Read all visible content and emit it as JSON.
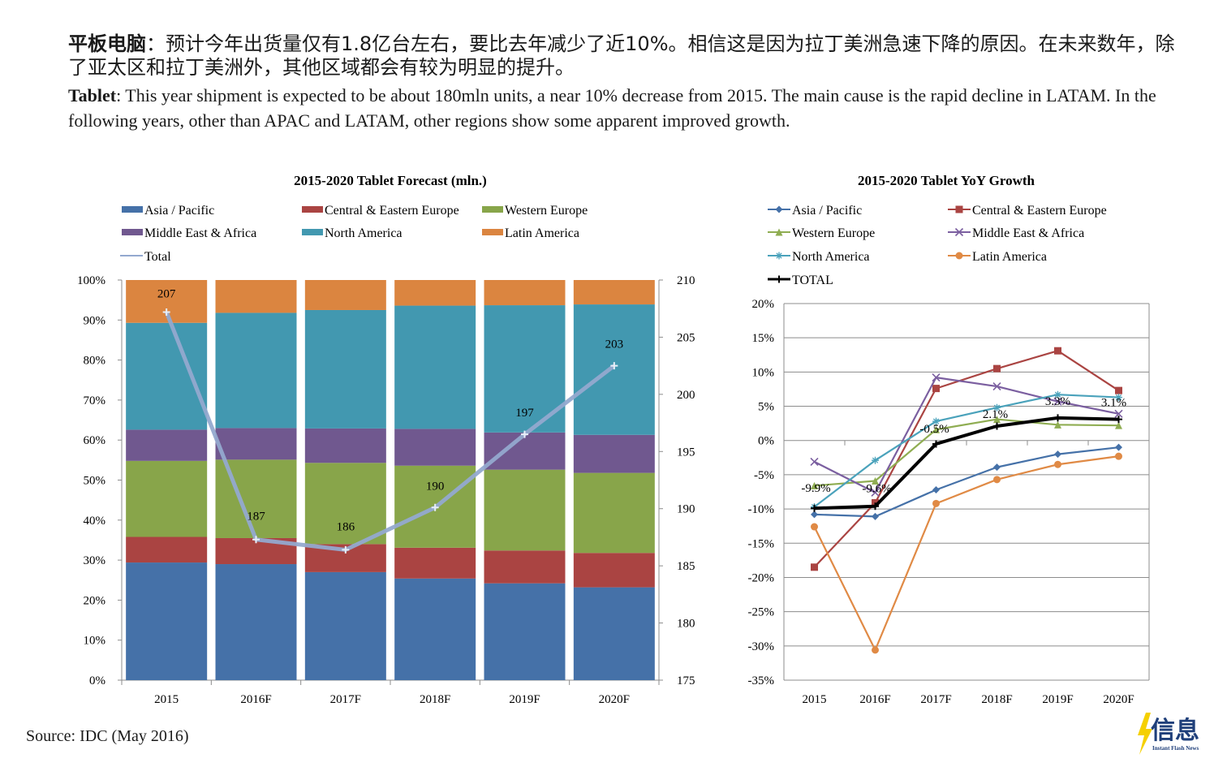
{
  "header": {
    "zh_bold": "平板电脑",
    "zh_text": "：预计今年出货量仅有1.8亿台左右，要比去年减少了近10%。相信这是因为拉丁美洲急速下降的原因。在未来数年，除了亚太区和拉丁美洲外，其他区域都会有较为明显的提升。",
    "en_bold": "Tablet",
    "en_text": ": This year shipment is expected to be about 180mln units, a near 10% decrease from 2015. The main cause is the rapid decline in LATAM. In the following years, other than APAC and LATAM, other regions show some apparent improved growth."
  },
  "source": "Source: IDC (May 2016)",
  "logo": {
    "text": "信息",
    "subtext": "Instant Flash News",
    "color": "#f5d000"
  },
  "chart_data": [
    {
      "type": "bar",
      "stacked": "percent",
      "title": "2015-2020 Tablet Forecast (mln.)",
      "categories": [
        "2015",
        "2016F",
        "2017F",
        "2018F",
        "2019F",
        "2020F"
      ],
      "y_axis": {
        "ticks": [
          "0%",
          "10%",
          "20%",
          "30%",
          "40%",
          "50%",
          "60%",
          "70%",
          "80%",
          "90%",
          "100%"
        ],
        "ylim": [
          0,
          100
        ]
      },
      "y2_axis": {
        "ticks": [
          "175",
          "180",
          "185",
          "190",
          "195",
          "200",
          "205",
          "210"
        ],
        "ylim": [
          175,
          210
        ]
      },
      "legend_position": "top",
      "series": [
        {
          "name": "Asia / Pacific",
          "color": "#4571a8",
          "values": [
            29.4,
            29.0,
            27.0,
            25.4,
            24.2,
            23.2
          ]
        },
        {
          "name": "Central & Eastern Europe",
          "color": "#aa4442",
          "values": [
            6.4,
            6.5,
            7.0,
            7.7,
            8.2,
            8.6
          ]
        },
        {
          "name": "Western Europe",
          "color": "#88a54a",
          "values": [
            19.0,
            19.6,
            20.3,
            20.5,
            20.2,
            20.0
          ]
        },
        {
          "name": "Middle East & Africa",
          "color": "#70588f",
          "values": [
            7.8,
            7.9,
            8.6,
            9.2,
            9.3,
            9.5
          ]
        },
        {
          "name": "North America",
          "color": "#4298b0",
          "values": [
            26.7,
            28.8,
            29.6,
            30.8,
            31.8,
            32.6
          ]
        },
        {
          "name": "Latin America",
          "color": "#db8540",
          "values": [
            10.7,
            8.2,
            7.5,
            6.4,
            6.3,
            6.1
          ]
        }
      ],
      "line_series": {
        "name": "Total",
        "color": "#93a9cf",
        "axis": "y2",
        "values": [
          207.2,
          187.3,
          186.4,
          190.1,
          196.5,
          202.5
        ],
        "labels": [
          "207",
          "187",
          "186",
          "190",
          "197",
          "203"
        ]
      }
    },
    {
      "type": "line",
      "title": "2015-2020 Tablet YoY Growth",
      "categories": [
        "2015",
        "2016F",
        "2017F",
        "2018F",
        "2019F",
        "2020F"
      ],
      "y_axis": {
        "ticks": [
          "-35%",
          "-30%",
          "-25%",
          "-20%",
          "-15%",
          "-10%",
          "-5%",
          "0%",
          "5%",
          "10%",
          "15%",
          "20%"
        ],
        "ylim": [
          -35,
          20
        ]
      },
      "legend_position": "top",
      "series": [
        {
          "name": "Asia / Pacific",
          "color": "#4571a8",
          "marker": "diamond",
          "values": [
            -10.8,
            -11.1,
            -7.2,
            -3.9,
            -2.0,
            -1.0
          ]
        },
        {
          "name": "Central & Eastern Europe",
          "color": "#aa4442",
          "marker": "square",
          "values": [
            -18.5,
            -9.1,
            7.6,
            10.5,
            13.1,
            7.3
          ]
        },
        {
          "name": "Western Europe",
          "color": "#8fad52",
          "marker": "triangle",
          "values": [
            -6.6,
            -5.9,
            1.6,
            3.1,
            2.3,
            2.2
          ]
        },
        {
          "name": "Middle East & Africa",
          "color": "#7b5fa0",
          "marker": "x",
          "values": [
            -3.1,
            -7.6,
            9.2,
            7.9,
            5.7,
            3.9
          ]
        },
        {
          "name": "North America",
          "color": "#4aa2bb",
          "marker": "star",
          "values": [
            -9.7,
            -2.9,
            2.8,
            4.8,
            6.7,
            6.3
          ]
        },
        {
          "name": "Latin America",
          "color": "#e08a45",
          "marker": "circle",
          "values": [
            -12.6,
            -30.6,
            -9.2,
            -5.7,
            -3.5,
            -2.3
          ]
        },
        {
          "name": "TOTAL",
          "color": "#000000",
          "marker": "plus",
          "bold": true,
          "values": [
            -9.9,
            -9.6,
            -0.5,
            2.1,
            3.3,
            3.1
          ],
          "labels": [
            "-9.9%",
            "-9.6%",
            "-0.5%",
            "2.1%",
            "3.3%",
            "3.1%"
          ]
        }
      ]
    }
  ]
}
